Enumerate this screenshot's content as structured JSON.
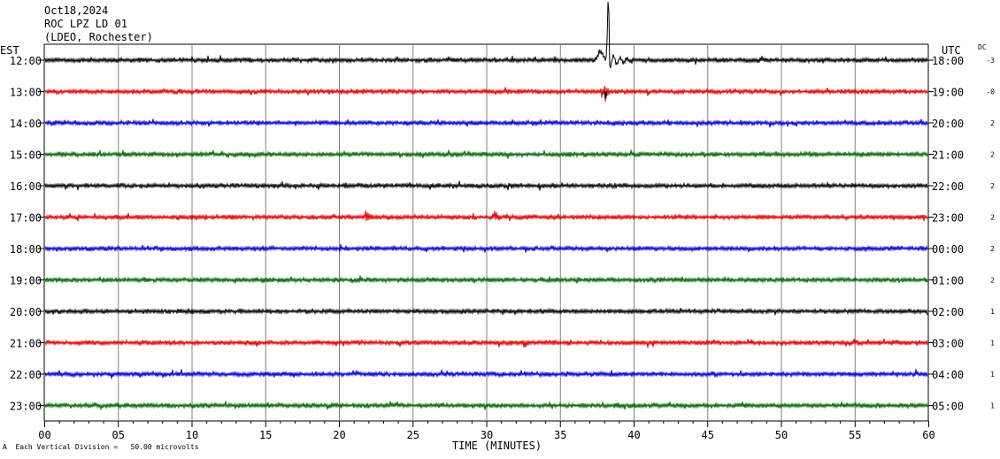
{
  "header": {
    "date": "Oct18,2024",
    "station": "ROC LPZ LD 01",
    "network": "(LDEO, Rochester)"
  },
  "left_timezone": "EST",
  "right_timezone": "UTC",
  "dc_label": "DC",
  "footnote": "Each Vertical Division =   50.00 microvolts",
  "footnote_marker": "A",
  "chart_data": {
    "type": "line",
    "title": "",
    "xlabel": "TIME (MINUTES)",
    "ylabel": "",
    "xlim": [
      0,
      60
    ],
    "x_ticks": [
      "00",
      "05",
      "10",
      "15",
      "20",
      "25",
      "30",
      "35",
      "40",
      "45",
      "50",
      "55",
      "60"
    ],
    "x_tick_values": [
      0,
      5,
      10,
      15,
      20,
      25,
      30,
      35,
      40,
      45,
      50,
      55,
      60
    ],
    "grid": true,
    "trace_color_cycle": [
      "#000000",
      "#dd0000",
      "#0000cc",
      "#006600"
    ],
    "rows": [
      {
        "est": "12:00",
        "utc": "18:00",
        "dc": "-3",
        "color": "#000000",
        "events": [
          {
            "t": 38.3,
            "amp": 70,
            "kind": "quake"
          }
        ]
      },
      {
        "est": "13:00",
        "utc": "19:00",
        "dc": "-0",
        "color": "#dd0000",
        "events": [
          {
            "t": 38.1,
            "amp": 8,
            "kind": "burst"
          }
        ]
      },
      {
        "est": "14:00",
        "utc": "20:00",
        "dc": "2",
        "color": "#0000cc",
        "events": []
      },
      {
        "est": "15:00",
        "utc": "21:00",
        "dc": "2",
        "color": "#006600",
        "events": []
      },
      {
        "est": "16:00",
        "utc": "22:00",
        "dc": "2",
        "color": "#000000",
        "events": []
      },
      {
        "est": "17:00",
        "utc": "23:00",
        "dc": "2",
        "color": "#dd0000",
        "events": [
          {
            "t": 22.0,
            "amp": 5,
            "kind": "burst"
          },
          {
            "t": 30.7,
            "amp": 5,
            "kind": "burst"
          }
        ]
      },
      {
        "est": "18:00",
        "utc": "00:00",
        "dc": "2",
        "color": "#0000cc",
        "events": []
      },
      {
        "est": "19:00",
        "utc": "01:00",
        "dc": "2",
        "color": "#006600",
        "events": []
      },
      {
        "est": "20:00",
        "utc": "02:00",
        "dc": "1",
        "color": "#000000",
        "events": []
      },
      {
        "est": "21:00",
        "utc": "03:00",
        "dc": "1",
        "color": "#dd0000",
        "events": [
          {
            "t": 32.6,
            "amp": 5,
            "kind": "burst"
          }
        ]
      },
      {
        "est": "22:00",
        "utc": "04:00",
        "dc": "1",
        "color": "#0000cc",
        "events": []
      },
      {
        "est": "23:00",
        "utc": "05:00",
        "dc": "1",
        "color": "#006600",
        "events": []
      }
    ]
  }
}
